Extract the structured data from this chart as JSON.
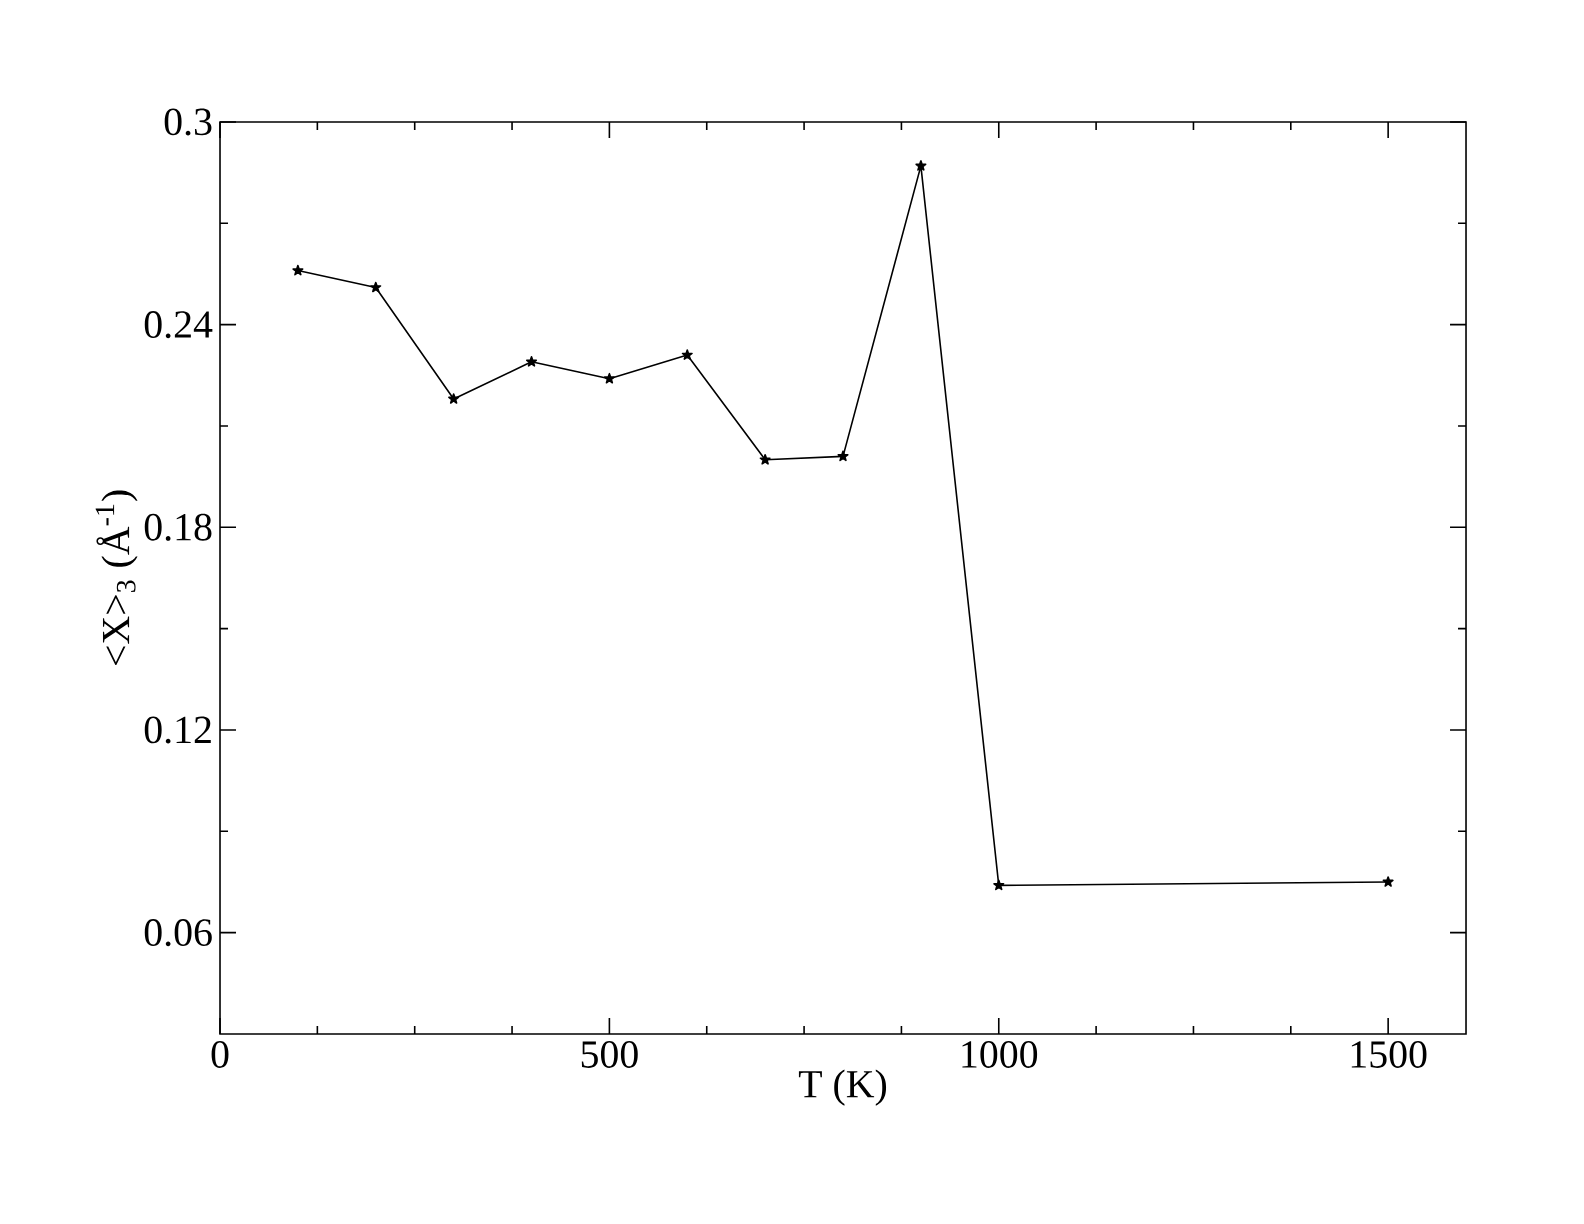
{
  "chart_data": {
    "type": "line",
    "xlabel": "T (K)",
    "ylabel": "<X>$_{3}$ (Å$^{-1}$)",
    "x": [
      100,
      200,
      300,
      400,
      500,
      600,
      700,
      800,
      900,
      1000,
      1500
    ],
    "series": [
      {
        "color": "#000000",
        "values": [
          0.256,
          0.251,
          0.218,
          0.229,
          0.224,
          0.231,
          0.2,
          0.201,
          0.287,
          0.074,
          0.075
        ]
      }
    ],
    "xlim": [
      0,
      1600
    ],
    "xticks": [
      0,
      500,
      1000,
      1500
    ],
    "ylim": [
      0.03,
      0.3
    ],
    "yticks": [
      0.06,
      0.12,
      0.18,
      0.24,
      0.3
    ],
    "marker": "star",
    "line_style": "solid",
    "grid": false
  }
}
